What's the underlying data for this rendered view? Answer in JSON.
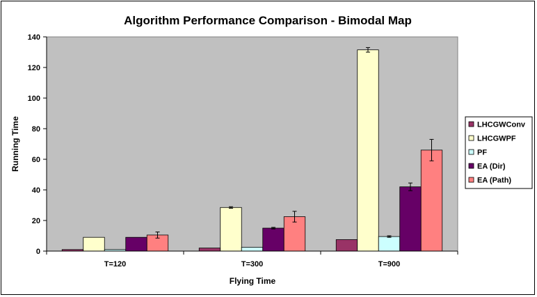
{
  "chart_data": {
    "type": "bar",
    "title": "Algorithm Performance Comparison - Bimodal Map",
    "xlabel": "Flying Time",
    "ylabel": "Running Time",
    "categories": [
      "T=120",
      "T=300",
      "T=900"
    ],
    "ylim": [
      0,
      140
    ],
    "yticks": [
      0,
      20,
      40,
      60,
      80,
      100,
      120,
      140
    ],
    "grid": false,
    "legend_position": "right",
    "series": [
      {
        "name": "LHCGWConv",
        "color": "#993366",
        "values": [
          1,
          2,
          7.5
        ],
        "errors": [
          0,
          0,
          0
        ]
      },
      {
        "name": "LHCGWPF",
        "color": "#FFFFCC",
        "values": [
          9,
          28.5,
          131.5
        ],
        "errors": [
          0,
          0.5,
          1.5
        ]
      },
      {
        "name": "PF",
        "color": "#CCFFFF",
        "values": [
          1,
          2.5,
          9.5
        ],
        "errors": [
          0,
          0,
          0.5
        ]
      },
      {
        "name": "EA (Dir)",
        "color": "#660066",
        "values": [
          9,
          15,
          42
        ],
        "errors": [
          0,
          0.5,
          2.5
        ]
      },
      {
        "name": "EA (Path)",
        "color": "#FF8080",
        "values": [
          10.5,
          22.5,
          66
        ],
        "errors": [
          2,
          3.5,
          7
        ]
      }
    ],
    "plot_background": "#C0C0C0"
  }
}
